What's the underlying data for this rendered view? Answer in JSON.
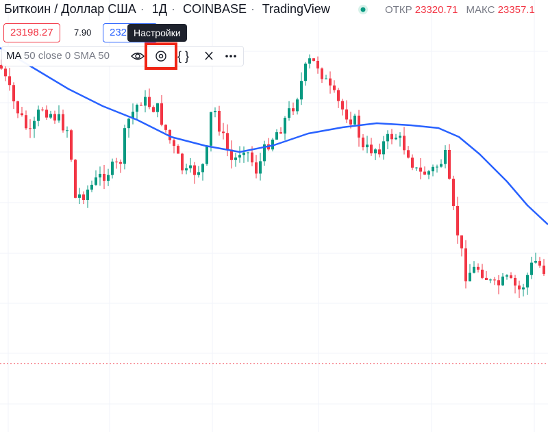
{
  "header": {
    "symbol": "Биткоин / Доллар США",
    "interval": "1Д",
    "exchange": "COINBASE",
    "source": "TradingView",
    "open_label": "ОТКР",
    "open_value": "23320.71",
    "high_label": "МАКС",
    "high_value": "23357.1"
  },
  "price_badges": {
    "bid": "23198.27",
    "spread": "7.90",
    "ask": "232"
  },
  "tooltip": "Настройки",
  "indicator": {
    "name": "MA",
    "params": "50 close 0 SMA 50"
  }
}
